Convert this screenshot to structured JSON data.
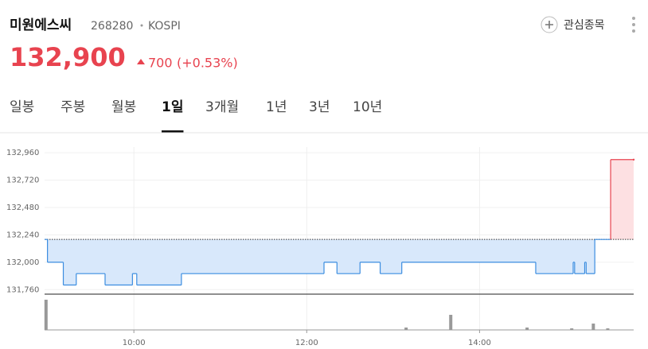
{
  "header": {
    "name": "미원에스씨",
    "code": "268280",
    "market": "KOSPI",
    "watch": "관심종목"
  },
  "price": {
    "value": "132,900",
    "change": "700",
    "change_pct": "(+0.53%)"
  },
  "tabs": {
    "items": [
      "일봉",
      "주봉",
      "월봉",
      "1일",
      "3개월",
      "1년",
      "3년",
      "10년"
    ],
    "active": 3
  },
  "chart_data": {
    "type": "line",
    "x": [
      538,
      540,
      551,
      560,
      580,
      599,
      602,
      633,
      732,
      741,
      757,
      771,
      786,
      879,
      905,
      906,
      913,
      914,
      920,
      931,
      947
    ],
    "values": [
      132200,
      132000,
      131800,
      131900,
      131800,
      131900,
      131800,
      131900,
      132000,
      131900,
      132000,
      131900,
      132000,
      131900,
      132000,
      131900,
      132000,
      131900,
      132200,
      132900,
      132900
    ],
    "baseline": 132200,
    "up_color": "#e8434f",
    "down_color": "#3b8de0",
    "xlim": [
      538,
      947
    ],
    "xticks": [
      {
        "value": 600,
        "label": "10:00"
      },
      {
        "value": 720,
        "label": "12:00"
      },
      {
        "value": 840,
        "label": "14:00"
      }
    ],
    "ylim": [
      131720,
      133010
    ],
    "yticks": [
      {
        "value": 132960,
        "label": "132,960"
      },
      {
        "value": 132720,
        "label": "132,720"
      },
      {
        "value": 132480,
        "label": "132,480"
      },
      {
        "value": 132240,
        "label": "132,240"
      },
      {
        "value": 132000,
        "label": "132,000"
      },
      {
        "value": 131760,
        "label": "131,760"
      }
    ],
    "grid": true,
    "volume": {
      "x": [
        539,
        789,
        820,
        873,
        904,
        919,
        929
      ],
      "values": [
        38,
        3,
        19,
        3,
        2,
        8,
        2
      ],
      "ylim": [
        0,
        40
      ],
      "color": "#999999"
    }
  }
}
